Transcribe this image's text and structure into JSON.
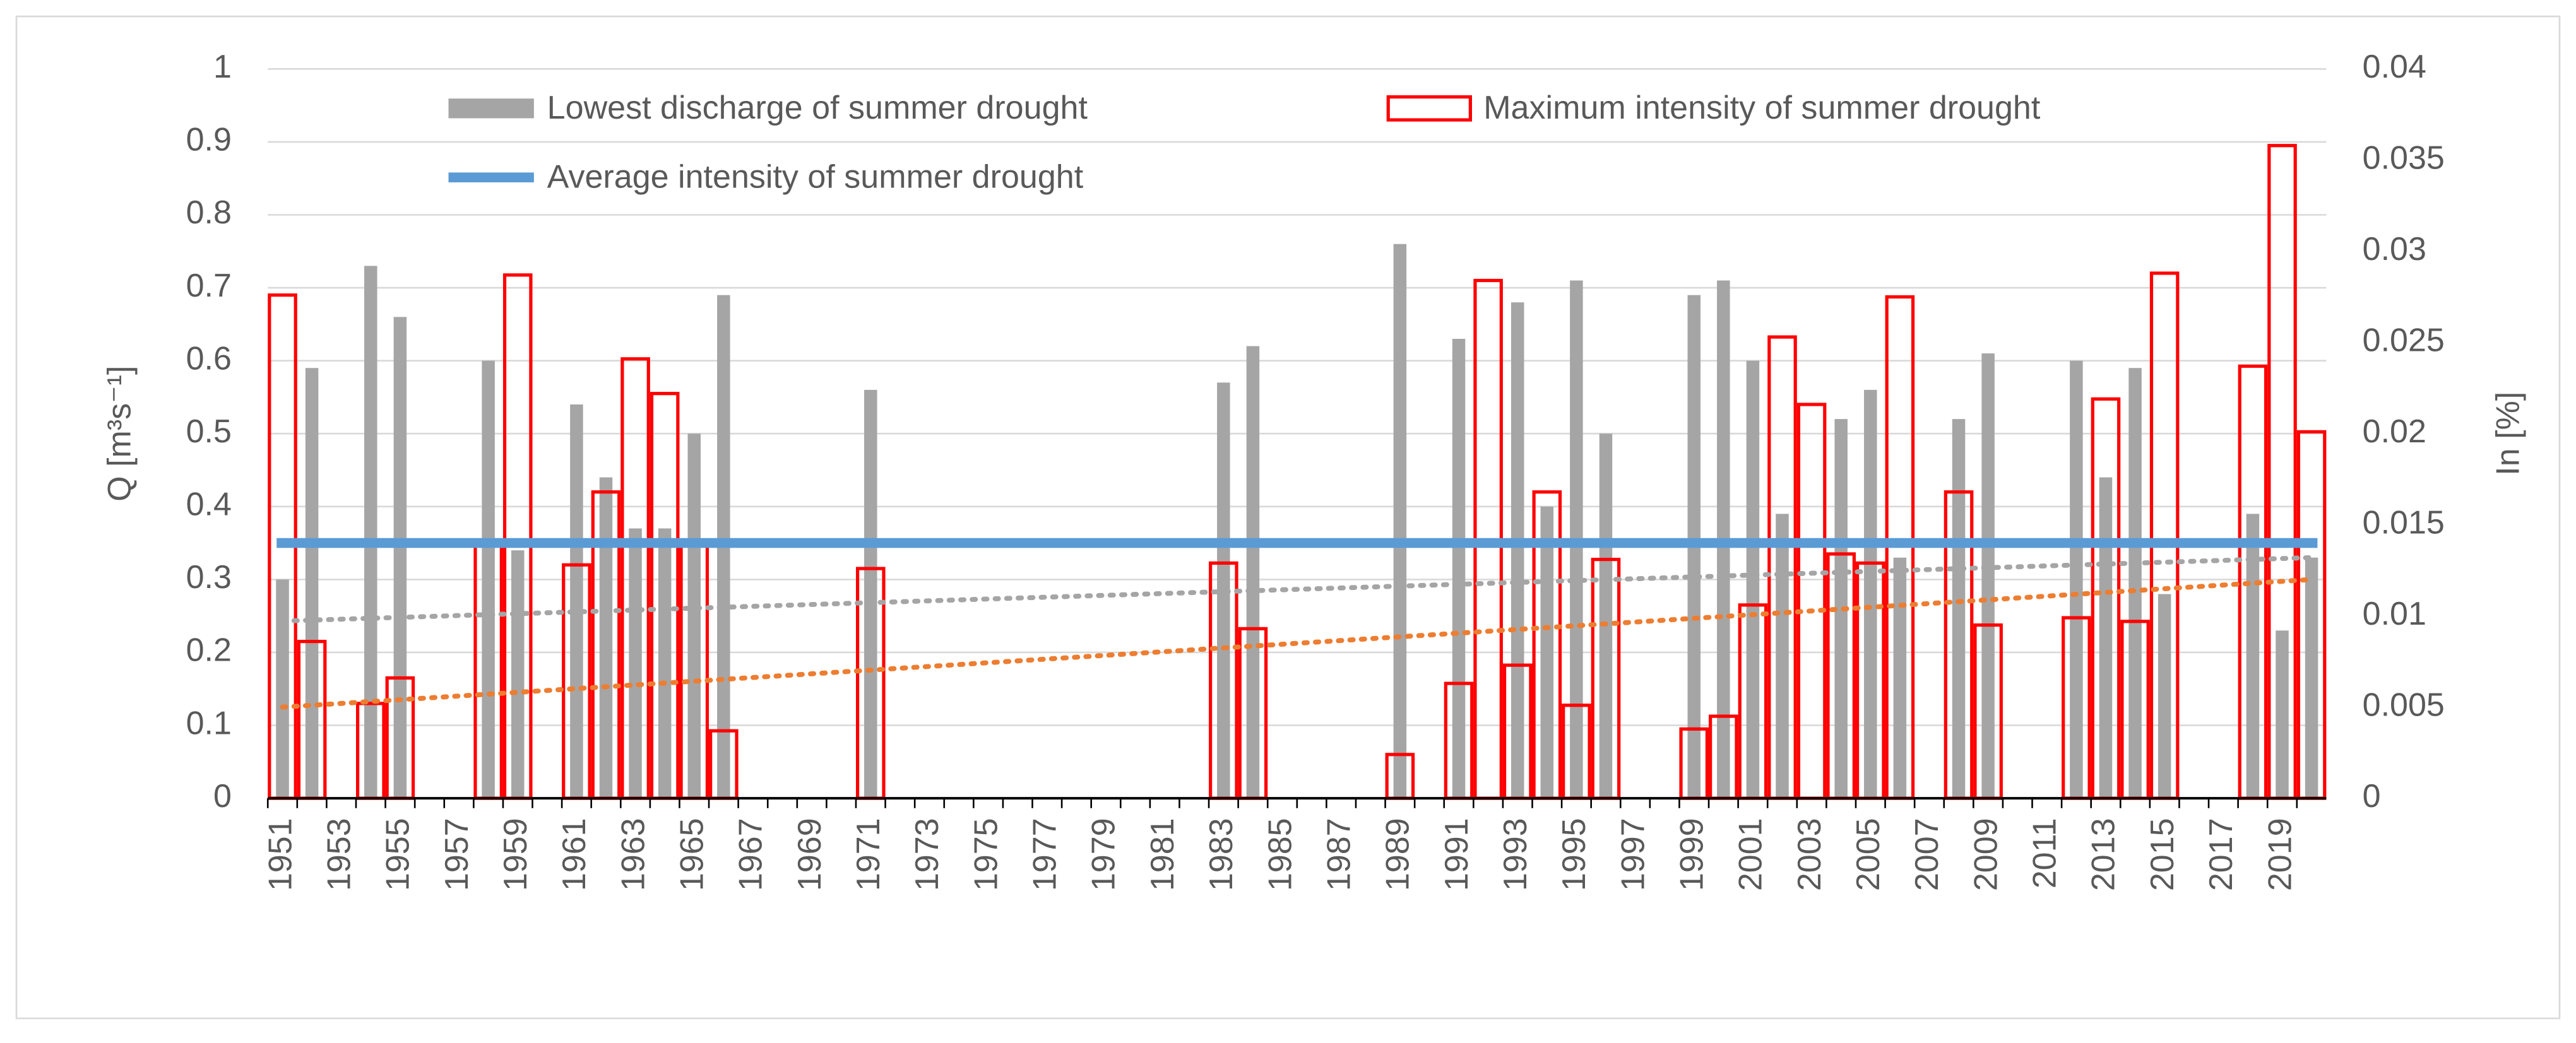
{
  "chart_data": {
    "type": "bar",
    "categories": [
      "1951",
      null,
      "1953",
      null,
      "1955",
      null,
      "1957",
      null,
      "1959",
      null,
      "1961",
      null,
      "1963",
      null,
      "1965",
      null,
      "1967",
      null,
      "1969",
      null,
      "1971",
      null,
      "1973",
      null,
      "1975",
      null,
      "1977",
      null,
      "1979",
      null,
      "1981",
      null,
      "1983",
      null,
      "1985",
      null,
      "1987",
      null,
      "1989",
      null,
      "1991",
      null,
      "1993",
      null,
      "1995",
      null,
      "1997",
      null,
      "1999",
      null,
      "2001",
      null,
      "2003",
      null,
      "2005",
      null,
      "2007",
      null,
      "2009",
      null,
      "2011",
      null,
      "2013",
      null,
      "2015",
      null,
      "2017",
      null,
      "2019",
      null
    ],
    "series": [
      {
        "name": "Lowest discharge of summer drought",
        "color": "#a5a5a5",
        "axis": "y",
        "values": [
          0.3,
          0.59,
          0,
          0.73,
          0.66,
          0,
          0,
          0.6,
          0.34,
          0,
          0.54,
          0.44,
          0.37,
          0.37,
          0.5,
          0.69,
          0,
          0,
          0,
          0,
          0.56,
          0,
          0,
          0,
          0,
          0,
          0,
          0,
          0,
          0,
          0,
          0,
          0.57,
          0.62,
          0,
          0,
          0,
          0,
          0.76,
          0,
          0.63,
          0,
          0.68,
          0.4,
          0.71,
          0.5,
          0,
          0,
          0.69,
          0.71,
          0.6,
          0.39,
          0,
          0.52,
          0.56,
          0.33,
          0,
          0.52,
          0.61,
          0,
          0,
          0.6,
          0.44,
          0.59,
          0.28,
          0,
          0,
          0.39,
          0.23,
          0.33
        ]
      },
      {
        "name": "Maximum intensity of summer drought",
        "color": "#ff0000",
        "axis": "y2",
        "values": [
          0.0276,
          0.0086,
          0,
          0.0052,
          0.0066,
          0,
          0,
          0.014,
          0.0287,
          0,
          0.0128,
          0.0168,
          0.0241,
          0.0222,
          0.014,
          0.0037,
          0,
          0,
          0,
          0,
          0.0126,
          0,
          0,
          0,
          0,
          0,
          0,
          0,
          0,
          0,
          0,
          0,
          0.0129,
          0.0093,
          0,
          0,
          0,
          0,
          0.0024,
          0,
          0.0063,
          0.0284,
          0.0073,
          0.0168,
          0.0051,
          0.0131,
          0,
          0,
          0.0038,
          0.0045,
          0.0106,
          0.0253,
          0.0216,
          0.0134,
          0.0129,
          0.0275,
          0,
          0.0168,
          0.0095,
          0,
          0,
          0.0099,
          0.0219,
          0.0097,
          0.0288,
          0,
          0,
          0.0237,
          0.0358,
          0.0201
        ]
      }
    ],
    "average": {
      "name": "Average intensity of summer drought",
      "color": "#5b9bd5",
      "value": 0.35
    },
    "trendlines": [
      {
        "color": "#a5a5a5",
        "axis": "y",
        "start": 0.243,
        "end": 0.33
      },
      {
        "color": "#ed7d31",
        "axis": "y2",
        "start": 0.005,
        "end": 0.012
      }
    ],
    "ylabel": "Q [m³s⁻¹]",
    "y2label": "In [%]",
    "ylim": [
      0,
      1
    ],
    "yticks": [
      0,
      0.1,
      0.2,
      0.3,
      0.4,
      0.5,
      0.6,
      0.7,
      0.8,
      0.9,
      1
    ],
    "y2lim": [
      0,
      0.04
    ],
    "y2ticks": [
      0,
      0.005,
      0.01,
      0.015,
      0.02,
      0.025,
      0.03,
      0.035,
      0.04
    ],
    "grid": true
  }
}
